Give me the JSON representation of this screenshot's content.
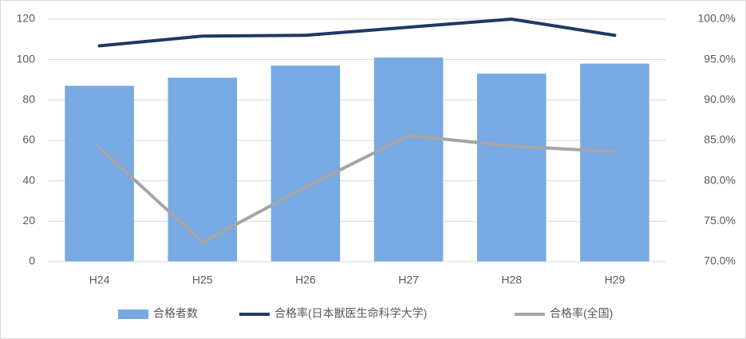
{
  "chart_data": {
    "type": "bar_line",
    "categories": [
      "H24",
      "H25",
      "H26",
      "H27",
      "H28",
      "H29"
    ],
    "series": [
      {
        "name": "合格者数",
        "type": "bar",
        "color": "#77a9e3",
        "values": [
          87,
          91,
          97,
          101,
          93,
          98
        ]
      },
      {
        "name": "合格率(日本獣医生命科学大学)",
        "type": "line",
        "axis": "y2",
        "color": "#1f3864",
        "values": [
          96.7,
          97.9,
          98.0,
          99.0,
          100.0,
          98.0
        ]
      },
      {
        "name": "合格率(全国)",
        "type": "line",
        "axis": "y2",
        "color": "#a5a5a5",
        "values": [
          84.1,
          72.4,
          79.2,
          85.6,
          84.3,
          83.6
        ]
      }
    ],
    "ylim": [
      0,
      120
    ],
    "yticks": [
      0,
      20,
      40,
      60,
      80,
      100,
      120
    ],
    "y2lim": [
      70,
      100
    ],
    "y2ticks": [
      {
        "value": 70,
        "label": "70.0%"
      },
      {
        "value": 75,
        "label": "75.0%"
      },
      {
        "value": 80,
        "label": "80.0%"
      },
      {
        "value": 85,
        "label": "85.0%"
      },
      {
        "value": 90,
        "label": "90.0%"
      },
      {
        "value": 95,
        "label": "95.0%"
      },
      {
        "value": 100,
        "label": "100.0%"
      }
    ],
    "legend": "bottom"
  }
}
